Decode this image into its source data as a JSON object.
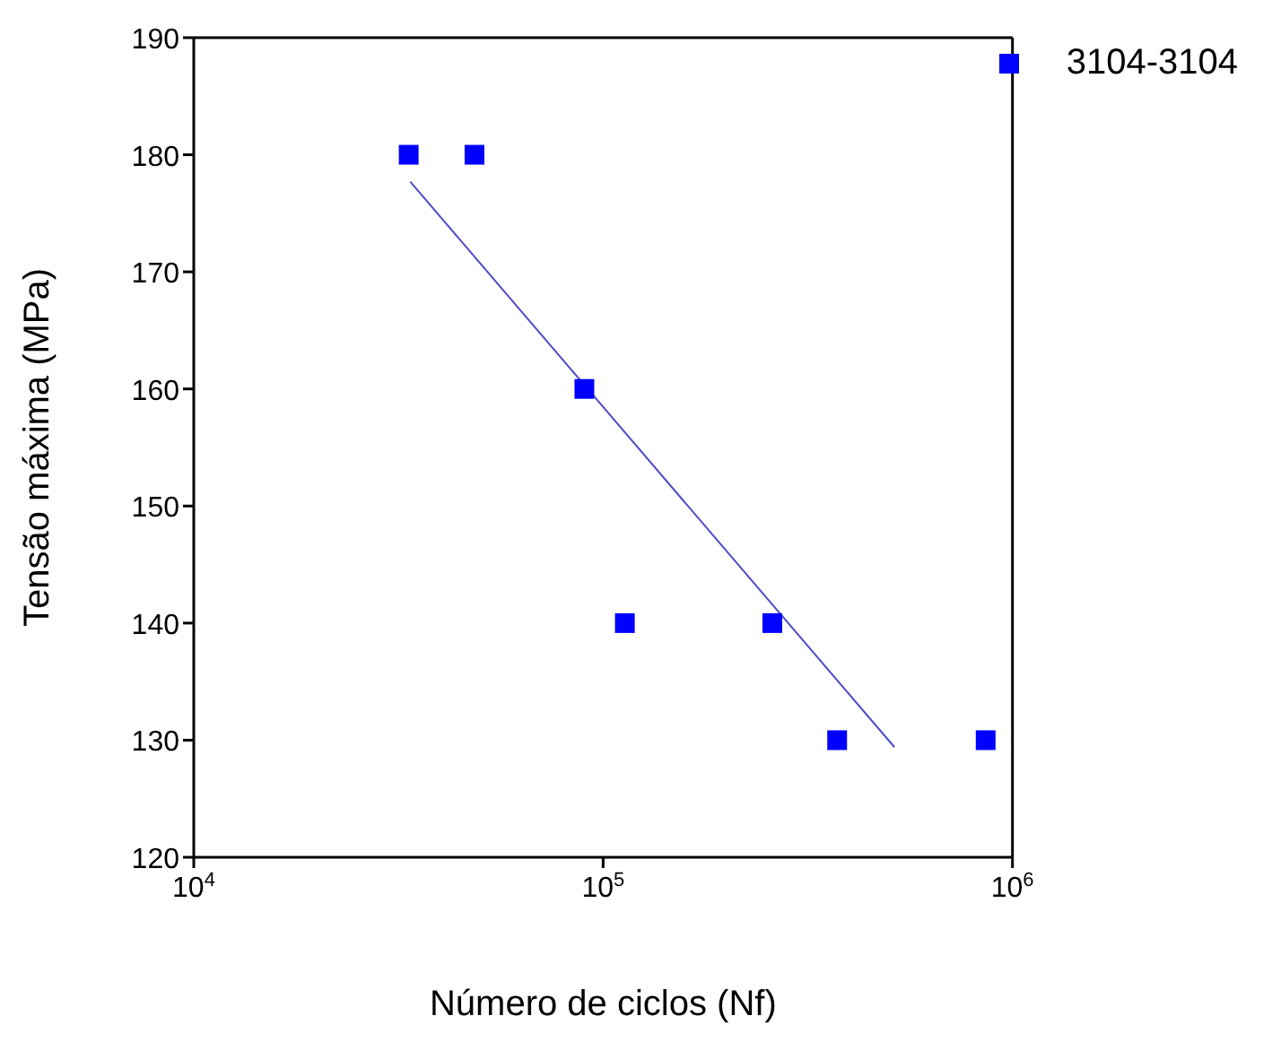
{
  "chart_data": {
    "type": "scatter",
    "xlabel": "Número de ciclos (Nf)",
    "ylabel": "Tensão máxima (MPa)",
    "log": "x",
    "xlim": [
      10000,
      1000000
    ],
    "xticks": [
      {
        "value": 10000,
        "label": "10$^{4}$"
      },
      {
        "value": 100000,
        "label": "10$^{5}$"
      },
      {
        "value": 1000000,
        "label": "10$^{6}$"
      }
    ],
    "ylim": [
      120,
      190
    ],
    "yticks": [
      120,
      130,
      140,
      150,
      160,
      170,
      180,
      190
    ],
    "grid": false,
    "legend": "top right",
    "marker": "square",
    "series": [
      {
        "name": "3104-3104",
        "color": "#0000ff",
        "x": [
          33500,
          48500,
          90000,
          113000,
          259000,
          373000,
          860000
        ],
        "values": [
          180,
          180,
          160,
          140,
          140,
          130,
          130
        ]
      },
      {
        "type": "line",
        "color": "#4b4bc8",
        "marker": "none",
        "x": [
          33800,
          515000
        ],
        "values": [
          177.7,
          129.4
        ]
      }
    ]
  }
}
